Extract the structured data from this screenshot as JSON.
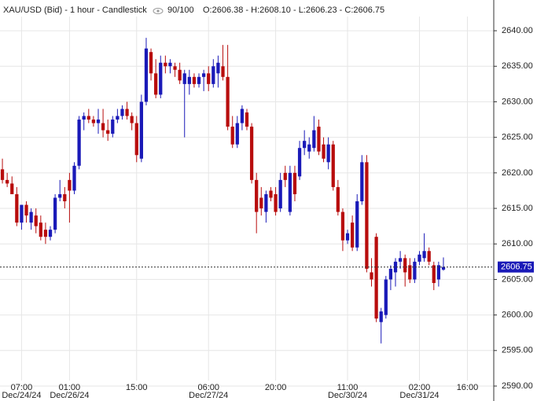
{
  "header": {
    "title": "XAU/USD (Bid) - 1 hour - Candlestick",
    "zoom": "90/100",
    "ohlc": "O:2606.38 - H:2608.10 - L:2606.23 - C:2606.75"
  },
  "chart_data": {
    "type": "candlestick",
    "up_color": "#1a1ab8",
    "down_color": "#b80d0d",
    "grid": true,
    "xlim": [
      -0.5,
      102.5
    ],
    "xticks": [
      {
        "value": 4,
        "label": "07:00"
      },
      {
        "value": 14,
        "label": "01:00"
      },
      {
        "value": 28,
        "label": "15:00"
      },
      {
        "value": 43,
        "label": "06:00"
      },
      {
        "value": 57,
        "label": "20:00"
      },
      {
        "value": 72,
        "label": "11:00"
      },
      {
        "value": 87,
        "label": "02:00"
      },
      {
        "value": 97,
        "label": "16:00"
      }
    ],
    "xtick_dates": [
      "Dec/24/24",
      "Dec/26/24",
      null,
      "Dec/27/24",
      null,
      "Dec/30/24",
      "Dec/31/24",
      null
    ],
    "ylim": [
      2590,
      2642
    ],
    "yticks": [
      {
        "value": 2590,
        "label": "2590.00"
      },
      {
        "value": 2595,
        "label": "2595.00"
      },
      {
        "value": 2600,
        "label": "2600.00"
      },
      {
        "value": 2605,
        "label": "2605.00"
      },
      {
        "value": 2610,
        "label": "2610.00"
      },
      {
        "value": 2615,
        "label": "2615.00"
      },
      {
        "value": 2620,
        "label": "2620.00"
      },
      {
        "value": 2625,
        "label": "2625.00"
      },
      {
        "value": 2630,
        "label": "2630.00"
      },
      {
        "value": 2635,
        "label": "2635.00"
      },
      {
        "value": 2640,
        "label": "2640.00"
      }
    ],
    "last_price": 2606.75,
    "open": [
      2620.5,
      2619,
      2618.5,
      2617,
      2613,
      2615.5,
      2613,
      2614,
      2613,
      2612,
      2611,
      2612,
      2616.5,
      2617,
      2619,
      2617.5,
      2621,
      2627.5,
      2628,
      2627.5,
      2627,
      2627,
      2626,
      2625.5,
      2627.5,
      2628,
      2629,
      2628,
      2627,
      2622,
      2630,
      2637,
      2634,
      2631,
      2635.5,
      2635,
      2635,
      2634.5,
      2632.5,
      2632.5,
      2633.5,
      2632.5,
      2633.5,
      2634,
      2632.5,
      2634,
      2635,
      2633.5,
      2626.5,
      2624,
      2627,
      2628.5,
      2626.5,
      2619,
      2616.5,
      2614.5,
      2617.5,
      2617,
      2615,
      2620,
      2614.5,
      2620,
      2619.5,
      2623.5,
      2623,
      2623.5,
      2626.5,
      2624,
      2621.5,
      2624,
      2618,
      2614.5,
      2610.5,
      2613,
      2609.5,
      2616,
      2621.5,
      2606,
      2611,
      2599,
      2600,
      2605,
      2606,
      2607.5,
      2608,
      2607,
      2605,
      2607.5,
      2608,
      2609,
      2607,
      2605,
      2606.38
    ],
    "high": [
      2622,
      2620,
      2619.5,
      2618,
      2615.5,
      2616,
      2615,
      2615,
      2614,
      2613,
      2612.5,
      2617,
      2619,
      2618,
      2620,
      2621.5,
      2628,
      2628.5,
      2629,
      2628,
      2629,
      2629,
      2627.5,
      2628,
      2629,
      2629.5,
      2630,
      2628.5,
      2628,
      2631,
      2639,
      2637.5,
      2636,
      2636.5,
      2636.5,
      2636,
      2635.5,
      2635.5,
      2634.5,
      2634.5,
      2634,
      2634,
      2634.5,
      2635,
      2636,
      2636.5,
      2638,
      2638,
      2628,
      2628,
      2629.5,
      2629,
      2627,
      2620,
      2618,
      2617.5,
      2618,
      2618,
      2620,
      2621,
      2621,
      2621,
      2624.5,
      2626,
      2625,
      2628,
      2627.5,
      2625,
      2625,
      2624.5,
      2619,
      2615,
      2612,
      2614,
      2617,
      2622.5,
      2622.5,
      2608,
      2611.5,
      2601,
      2605.5,
      2607,
      2608,
      2609,
      2608.5,
      2608,
      2608,
      2609,
      2611.5,
      2609.5,
      2607.5,
      2607.5,
      2608.1
    ],
    "low": [
      2618.5,
      2618,
      2617,
      2612.5,
      2612,
      2613,
      2612,
      2611.5,
      2610.5,
      2610,
      2610.5,
      2611.5,
      2616,
      2615,
      2613,
      2617,
      2620.5,
      2626,
      2627,
      2626.5,
      2625.5,
      2625,
      2624.5,
      2625,
      2627,
      2627.5,
      2627.5,
      2626,
      2621.5,
      2621.5,
      2629.5,
      2633,
      2630.5,
      2630.5,
      2634,
      2634,
      2633.5,
      2632.5,
      2625,
      2631,
      2632,
      2632,
      2631.5,
      2631.5,
      2632,
      2632,
      2633,
      2626,
      2623.5,
      2623.5,
      2626,
      2626,
      2618.5,
      2611.5,
      2614,
      2613,
      2616,
      2614,
      2614.5,
      2618,
      2614,
      2616,
      2619,
      2622.5,
      2622,
      2623,
      2622.5,
      2621.5,
      2620.5,
      2617.5,
      2614,
      2609,
      2610,
      2609,
      2609,
      2615.5,
      2606,
      2604,
      2599,
      2596,
      2599.5,
      2603.5,
      2604,
      2606.5,
      2604,
      2604.5,
      2604.5,
      2607,
      2607.5,
      2607,
      2603.5,
      2604,
      2606.23
    ],
    "close": [
      2619,
      2618.5,
      2617,
      2613,
      2615.5,
      2614,
      2614.5,
      2612.5,
      2611,
      2611,
      2612,
      2616.5,
      2617,
      2616,
      2617.5,
      2621,
      2627.5,
      2628,
      2627.5,
      2627,
      2627.5,
      2626,
      2625.5,
      2627.5,
      2628,
      2629,
      2628,
      2627,
      2622.5,
      2630,
      2637.5,
      2634,
      2631,
      2635.5,
      2635,
      2635.5,
      2634.5,
      2633,
      2634,
      2633.5,
      2632.5,
      2633.5,
      2634,
      2632.5,
      2635,
      2635.5,
      2633.5,
      2626.5,
      2624,
      2627,
      2629,
      2626.5,
      2619,
      2614.5,
      2615,
      2617,
      2616.5,
      2614.5,
      2619,
      2619,
      2620,
      2617,
      2623.5,
      2624.5,
      2624,
      2626,
      2623,
      2622,
      2624,
      2618,
      2614.5,
      2610.5,
      2611.5,
      2609.5,
      2616,
      2621.5,
      2606.5,
      2605,
      2599.5,
      2600.5,
      2605,
      2606.5,
      2607.5,
      2608,
      2606,
      2605,
      2607.5,
      2608.5,
      2609,
      2607.5,
      2604.5,
      2607,
      2606.75
    ]
  }
}
